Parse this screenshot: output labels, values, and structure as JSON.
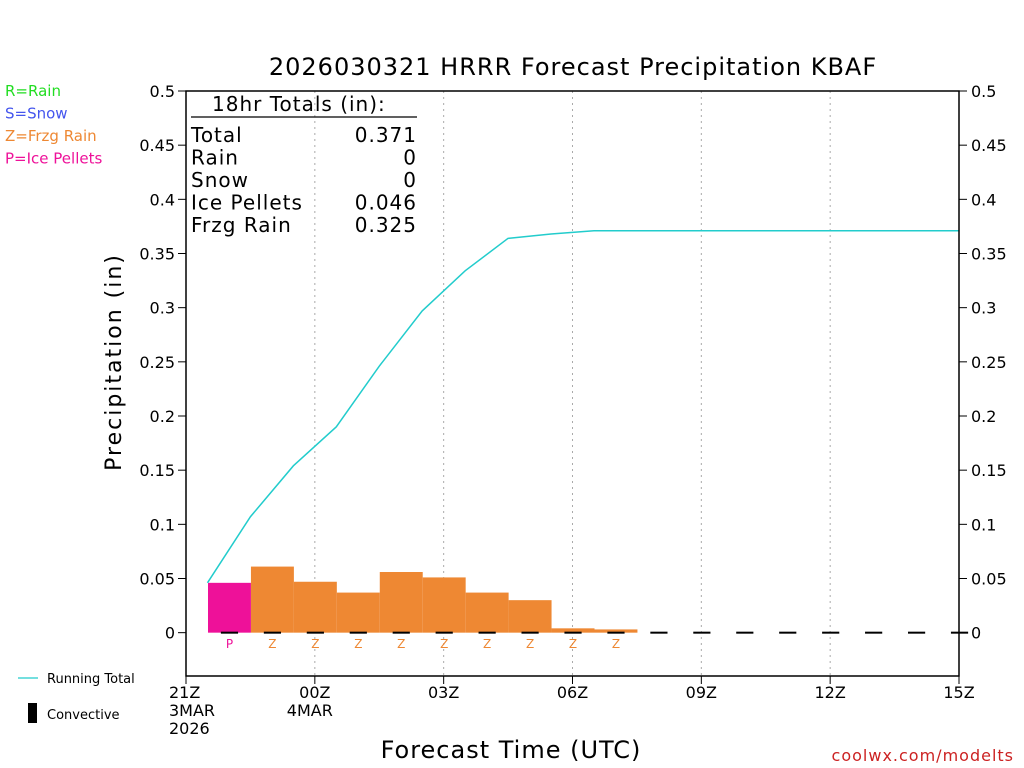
{
  "chart_data": {
    "type": "bar",
    "title": "2026030321 HRRR Forecast Precipitation KBAF",
    "xlabel": "Forecast Time (UTC)",
    "ylabel": "Precipitation (in)",
    "ylim": [
      -0.04,
      0.5
    ],
    "xlim": [
      0,
      18
    ],
    "grid": "vertical-dotted",
    "y_ticks": [
      0,
      0.05,
      0.1,
      0.15,
      0.2,
      0.25,
      0.3,
      0.35,
      0.4,
      0.45,
      0.5
    ],
    "y_tick_labels": [
      "0",
      "0.05",
      "0.1",
      "0.15",
      "0.2",
      "0.25",
      "0.3",
      "0.35",
      "0.4",
      "0.45",
      "0.5"
    ],
    "x_ticks": [
      {
        "hour": 0,
        "lines": [
          "21Z",
          "3MAR",
          "2026"
        ]
      },
      {
        "hour": 3,
        "lines": [
          "00Z",
          "4MAR"
        ]
      },
      {
        "hour": 6,
        "lines": [
          "03Z"
        ]
      },
      {
        "hour": 9,
        "lines": [
          "06Z"
        ]
      },
      {
        "hour": 12,
        "lines": [
          "09Z"
        ]
      },
      {
        "hour": 15,
        "lines": [
          "12Z"
        ]
      },
      {
        "hour": 18,
        "lines": [
          "15Z"
        ]
      }
    ],
    "precip_type_legend": [
      {
        "label": "R=Rain",
        "color": "#22dd22"
      },
      {
        "label": "S=Snow",
        "color": "#4455ee"
      },
      {
        "label": "Z=Frzg Rain",
        "color": "#ee8833"
      },
      {
        "label": "P=Ice Pellets",
        "color": "#ee1199"
      }
    ],
    "series": [
      {
        "name": "Hourly Precipitation",
        "hours": [
          1,
          2,
          3,
          4,
          5,
          6,
          7,
          8,
          9,
          10,
          11,
          12,
          13,
          14,
          15,
          16,
          17,
          18
        ],
        "values": [
          0.046,
          0.061,
          0.047,
          0.037,
          0.056,
          0.051,
          0.037,
          0.03,
          0.004,
          0.003,
          0,
          0,
          0,
          0,
          0,
          0,
          0,
          0
        ],
        "types": [
          "P",
          "Z",
          "Z",
          "Z",
          "Z",
          "Z",
          "Z",
          "Z",
          "Z",
          "Z",
          "",
          "",
          "",
          "",
          "",
          "",
          "",
          ""
        ]
      },
      {
        "name": "Running Total",
        "color": "#22cccc",
        "x": [
          0.5,
          1.5,
          2.5,
          3.5,
          4.5,
          5.5,
          6.5,
          7.5,
          8.5,
          9.5,
          10.5,
          11.5,
          12.5,
          13.5,
          14.5,
          15.5,
          16.5,
          17.5,
          18
        ],
        "values": [
          0.046,
          0.107,
          0.154,
          0.19,
          0.246,
          0.297,
          0.334,
          0.364,
          0.368,
          0.371,
          0.371,
          0.371,
          0.371,
          0.371,
          0.371,
          0.371,
          0.371,
          0.371,
          0.371
        ]
      }
    ],
    "convective": [
      0,
      0,
      0,
      0,
      0,
      0,
      0,
      0,
      0,
      0,
      0,
      0,
      0,
      0,
      0,
      0,
      0,
      0
    ],
    "type_colors": {
      "P": "#ee1199",
      "Z": "#ee8833",
      "R": "#22dd22",
      "S": "#4455ee"
    },
    "totals_box": {
      "header": "18hr Totals (in):",
      "rows": [
        {
          "label": "Total",
          "value": "0.371"
        },
        {
          "label": "Rain",
          "value": "0"
        },
        {
          "label": "Snow",
          "value": "0"
        },
        {
          "label": "Ice Pellets",
          "value": "0.046"
        },
        {
          "label": "Frzg Rain",
          "value": "0.325"
        }
      ]
    },
    "bottom_legend": [
      {
        "label": "Running Total",
        "kind": "line",
        "color": "#22cccc"
      },
      {
        "label": "Convective",
        "kind": "bar",
        "color": "#000000"
      }
    ],
    "credit": "coolwx.com/modelts",
    "credit_color": "#cc2222"
  }
}
